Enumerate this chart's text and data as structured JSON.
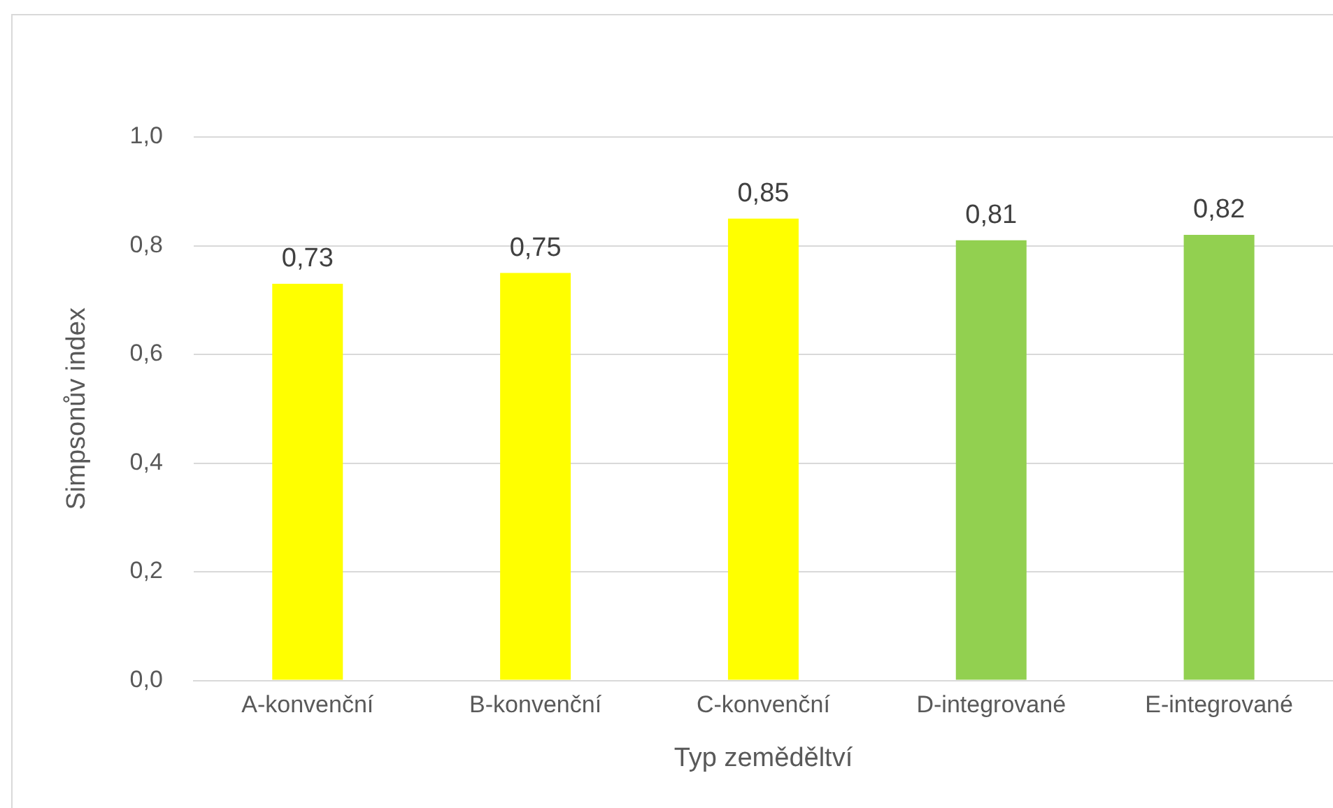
{
  "chart_data": {
    "type": "bar",
    "xlabel": "Typ zeměděltví",
    "ylabel": "Simpsonův index",
    "categories": [
      "A-konvenční",
      "B-konvenční",
      "C-konvenční",
      "D-integrované",
      "E-integrované"
    ],
    "values": [
      0.73,
      0.75,
      0.85,
      0.81,
      0.82
    ],
    "colors": [
      "#ffff00",
      "#ffff00",
      "#ffff00",
      "#92d050",
      "#92d050"
    ],
    "value_labels": [
      "0,73",
      "0,75",
      "0,85",
      "0,81",
      "0,82"
    ],
    "ylim": [
      0,
      1
    ],
    "yticks": [
      {
        "value": 0,
        "label": "0,0"
      },
      {
        "value": 0.2,
        "label": "0,2"
      },
      {
        "value": 0.4,
        "label": "0,4"
      },
      {
        "value": 0.6,
        "label": "0,6"
      },
      {
        "value": 0.8,
        "label": "0,8"
      },
      {
        "value": 1,
        "label": "1,0"
      }
    ],
    "grid": "y",
    "legend": false
  }
}
